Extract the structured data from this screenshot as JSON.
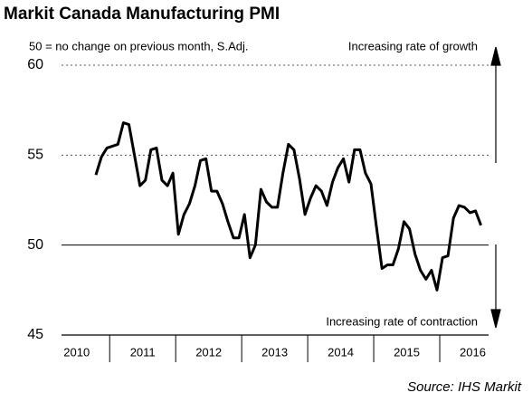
{
  "chart_data": {
    "type": "line",
    "title": "Markit Canada Manufacturing PMI",
    "subtitle": "50 = no change on previous month, S.Adj.",
    "annotations": [
      "Increasing rate of growth",
      "Increasing rate of contraction"
    ],
    "source": "Source: IHS Markit",
    "categories": [
      null,
      null,
      null,
      null,
      null,
      null,
      "2010",
      null,
      null,
      null,
      null,
      null,
      null,
      null,
      null,
      null,
      null,
      null,
      "2011",
      null,
      null,
      null,
      null,
      null,
      null,
      null,
      null,
      null,
      null,
      null,
      "2012",
      null,
      null,
      null,
      null,
      null,
      null,
      null,
      null,
      null,
      null,
      null,
      "2013",
      null,
      null,
      null,
      null,
      null,
      null,
      null,
      null,
      null,
      null,
      null,
      "2014",
      null,
      null,
      null,
      null,
      null,
      null,
      null,
      null,
      null,
      null,
      null,
      "2015",
      null,
      null,
      null,
      null,
      null,
      null,
      null,
      null,
      null,
      null,
      null,
      "2016",
      null
    ],
    "series": [
      {
        "name": "PMI",
        "color": "#000000",
        "values": [
          null,
          null,
          null,
          null,
          null,
          null,
          null,
          null,
          null,
          53.9,
          54.9,
          55.4,
          55.5,
          55.6,
          56.8,
          56.7,
          55.0,
          53.3,
          53.6,
          55.3,
          55.4,
          53.6,
          53.3,
          54.0,
          50.6,
          51.7,
          52.3,
          53.3,
          54.7,
          54.8,
          53.0,
          53.0,
          52.3,
          51.3,
          50.4,
          50.4,
          51.7,
          49.3,
          50.0,
          53.1,
          52.4,
          52.1,
          52.1,
          54.0,
          55.6,
          55.3,
          53.7,
          51.7,
          52.6,
          53.3,
          53.0,
          52.2,
          53.5,
          54.3,
          54.8,
          53.5,
          55.3,
          55.3,
          54.0,
          53.4,
          51.0,
          48.7,
          48.9,
          48.9,
          49.8,
          51.3,
          50.9,
          49.5,
          48.6,
          48.1,
          48.6,
          47.5,
          49.3,
          49.4,
          51.5,
          52.2,
          52.1,
          51.8,
          51.9,
          51.1
        ]
      }
    ],
    "ylim": [
      45,
      60
    ],
    "yticks": [
      45,
      50,
      55,
      60
    ]
  }
}
